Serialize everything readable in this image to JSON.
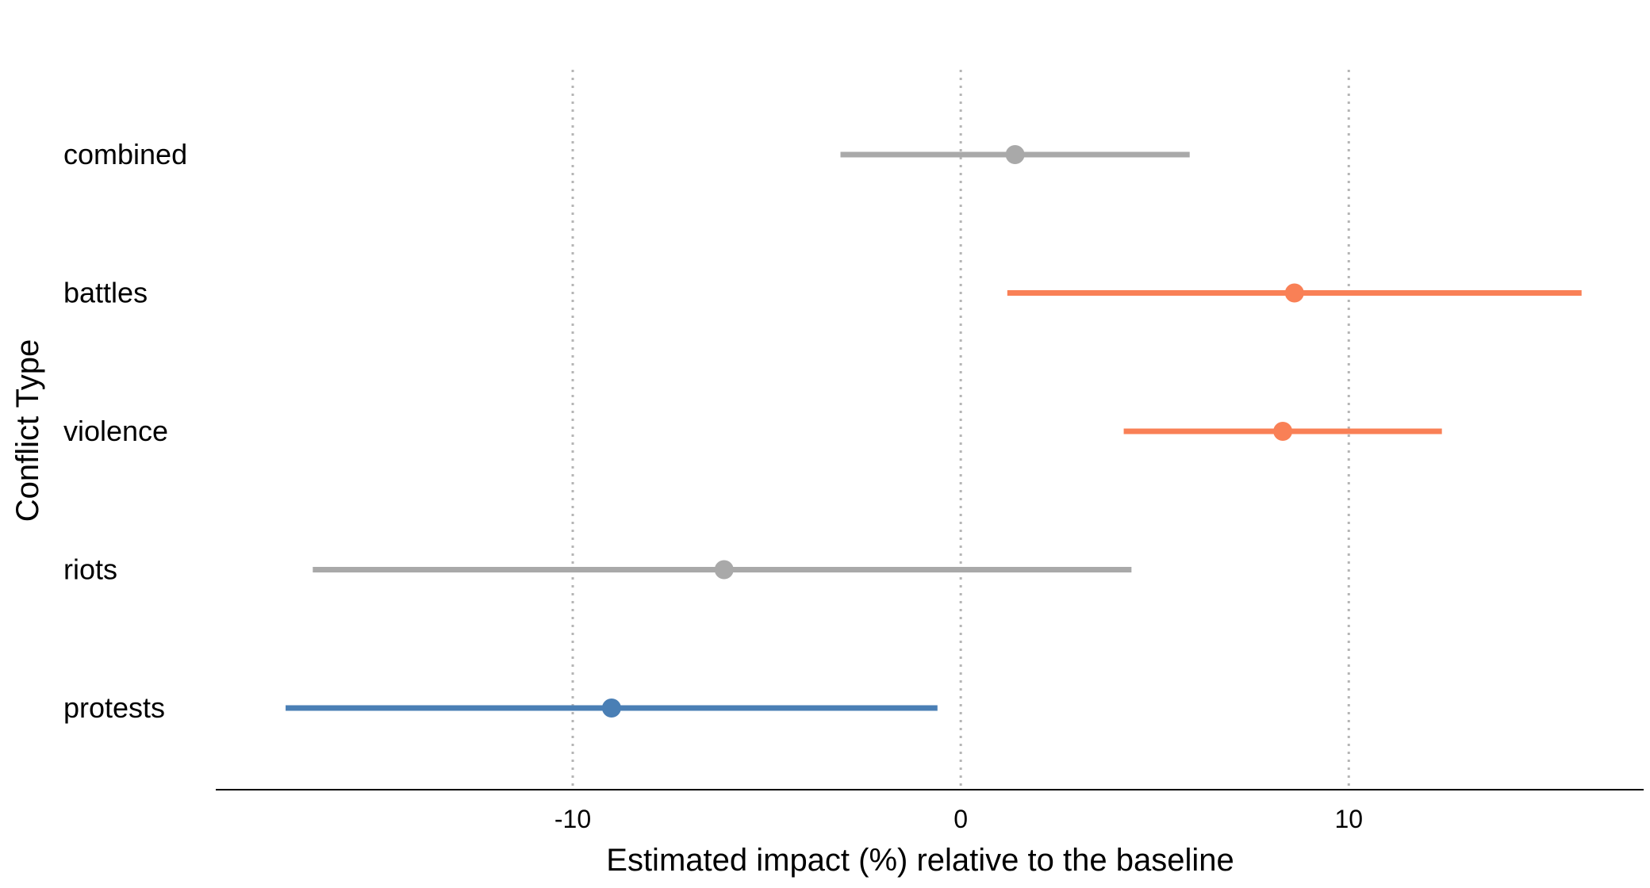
{
  "chart_data": {
    "type": "forest",
    "title": "",
    "xlabel": "Estimated impact (%) relative to the baseline",
    "ylabel": "Conflict Type",
    "xlim": [
      -19.2,
      17.6
    ],
    "xticks": [
      -10,
      0,
      10
    ],
    "xtick_labels": [
      "-10",
      "0",
      "10"
    ],
    "grid": "vertical dotted at ticks",
    "legend": "none",
    "colors": {
      "positive": "#f98056",
      "not_significant": "#a9a9a9",
      "negative": "#4a7fb5",
      "grid": "#b5b5b5",
      "axis": "#000000"
    },
    "categories": [
      "combined",
      "battles",
      "violence",
      "riots",
      "protests"
    ],
    "points": [
      {
        "category": "combined",
        "estimate": 1.4,
        "lower": -3.1,
        "upper": 5.9,
        "group": "not_significant"
      },
      {
        "category": "battles",
        "estimate": 8.6,
        "lower": 1.2,
        "upper": 16.0,
        "group": "positive"
      },
      {
        "category": "violence",
        "estimate": 8.3,
        "lower": 4.2,
        "upper": 12.4,
        "group": "positive"
      },
      {
        "category": "riots",
        "estimate": -6.1,
        "lower": -16.7,
        "upper": 4.4,
        "group": "not_significant"
      },
      {
        "category": "protests",
        "estimate": -9.0,
        "lower": -17.4,
        "upper": -0.6,
        "group": "negative"
      }
    ]
  }
}
